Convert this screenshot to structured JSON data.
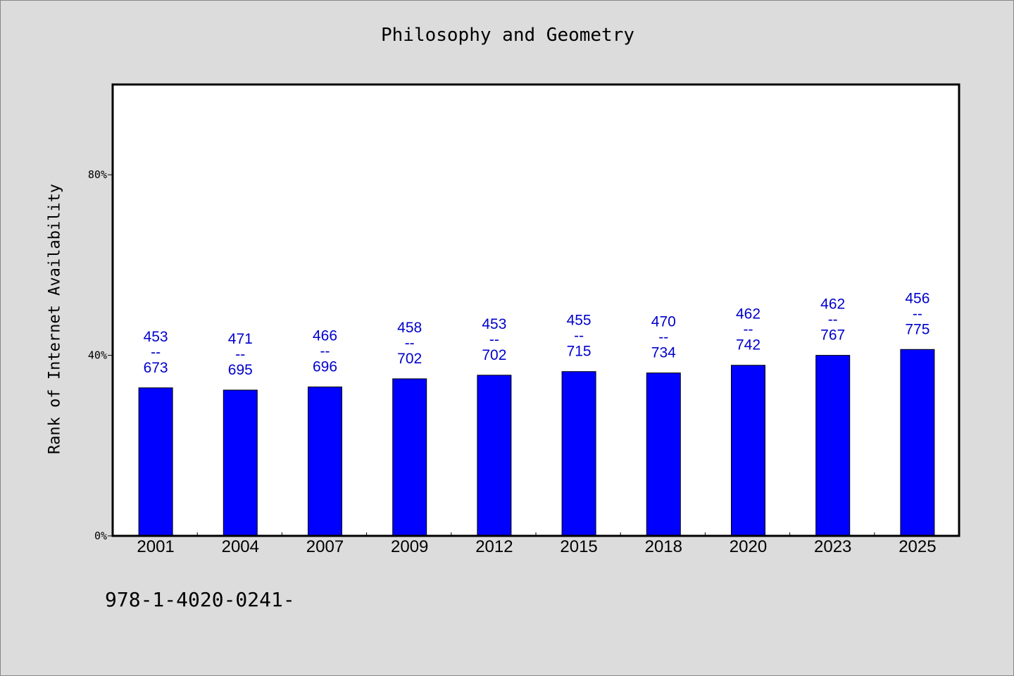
{
  "chart_data": {
    "type": "bar",
    "title": "Philosophy and Geometry",
    "ylabel": "Rank of Internet Availability",
    "xlabel": "",
    "categories": [
      "2001",
      "2004",
      "2007",
      "2009",
      "2012",
      "2015",
      "2018",
      "2020",
      "2023",
      "2025"
    ],
    "values": [
      32.8,
      32.3,
      33.0,
      34.8,
      35.6,
      36.4,
      36.1,
      37.8,
      40.0,
      41.3
    ],
    "data_labels": [
      [
        "453",
        "--",
        "673"
      ],
      [
        "471",
        "--",
        "695"
      ],
      [
        "466",
        "--",
        "696"
      ],
      [
        "458",
        "--",
        "702"
      ],
      [
        "453",
        "--",
        "702"
      ],
      [
        "455",
        "--",
        "715"
      ],
      [
        "470",
        "--",
        "734"
      ],
      [
        "462",
        "--",
        "742"
      ],
      [
        "462",
        "--",
        "767"
      ],
      [
        "456",
        "--",
        "775"
      ]
    ],
    "y_ticks": [
      {
        "value": 0,
        "label": "0%"
      },
      {
        "value": 40,
        "label": "40%"
      },
      {
        "value": 80,
        "label": "80%"
      }
    ],
    "ylim": [
      0,
      100
    ],
    "grid": false,
    "legend": "none",
    "bar_color": "#0000ff",
    "label_color": "#0000cc"
  },
  "footnote": "978-1-4020-0241-"
}
